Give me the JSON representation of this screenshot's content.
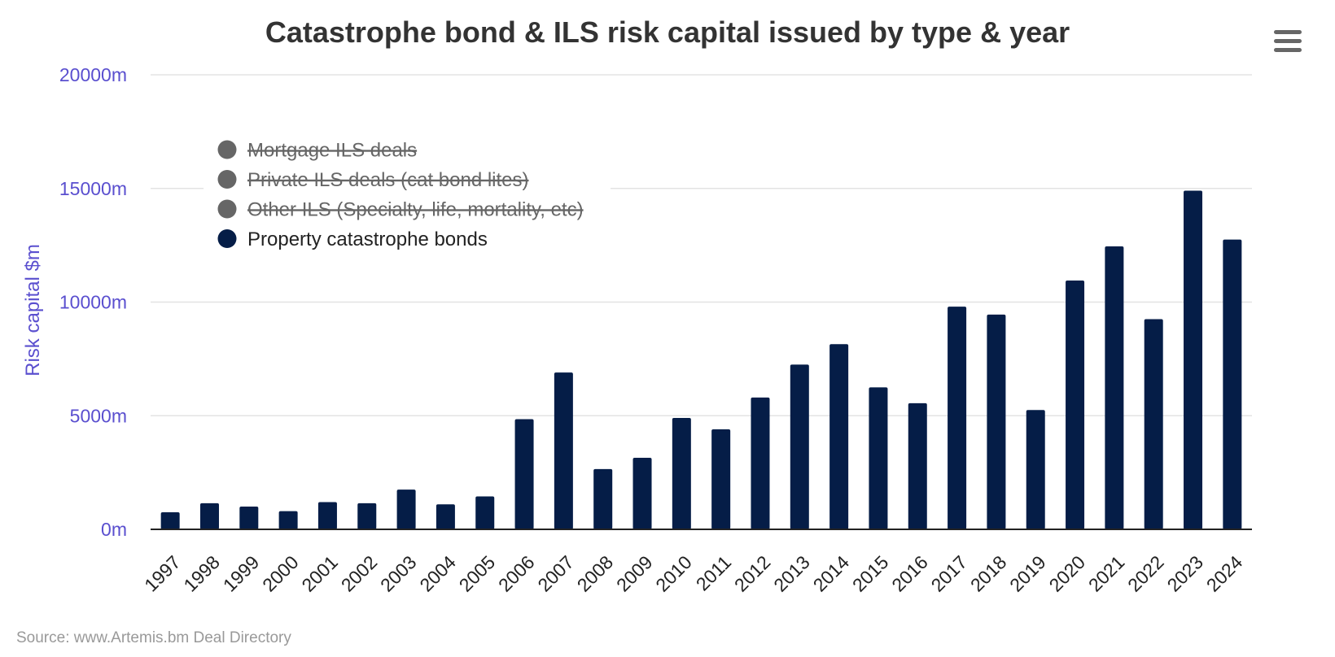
{
  "chart_data": {
    "type": "bar",
    "title": "Catastrophe bond & ILS risk capital issued by type & year",
    "ylabel": "Risk capital $m",
    "xlabel": "",
    "ylim": [
      0,
      20000
    ],
    "y_ticks": [
      "0m",
      "5000m",
      "10000m",
      "15000m",
      "20000m"
    ],
    "y_tick_values": [
      0,
      5000,
      10000,
      15000,
      20000
    ],
    "grid": true,
    "legend_position": "top-left",
    "categories": [
      "1997",
      "1998",
      "1999",
      "2000",
      "2001",
      "2002",
      "2003",
      "2004",
      "2005",
      "2006",
      "2007",
      "2008",
      "2009",
      "2010",
      "2011",
      "2012",
      "2013",
      "2014",
      "2015",
      "2016",
      "2017",
      "2018",
      "2019",
      "2020",
      "2021",
      "2022",
      "2023",
      "2024"
    ],
    "legend": [
      {
        "name": "Mortgage ILS deals",
        "visible": false,
        "color": "#666666"
      },
      {
        "name": "Private ILS deals (cat bond lites)",
        "visible": false,
        "color": "#666666"
      },
      {
        "name": "Other ILS (Specialty, life, mortality, etc)",
        "visible": false,
        "color": "#666666"
      },
      {
        "name": "Property catastrophe bonds",
        "visible": true,
        "color": "#051d47"
      }
    ],
    "series": [
      {
        "name": "Property catastrophe bonds",
        "color": "#051d47",
        "values": [
          750,
          1150,
          1000,
          800,
          1200,
          1150,
          1750,
          1100,
          1450,
          4850,
          6900,
          2650,
          3150,
          4900,
          4400,
          5800,
          7250,
          8150,
          6250,
          5550,
          9800,
          9450,
          5250,
          10950,
          12450,
          9250,
          14900,
          12750
        ]
      }
    ],
    "source": "Source: www.Artemis.bm Deal Directory"
  },
  "menu_icon": "hamburger-menu-icon"
}
